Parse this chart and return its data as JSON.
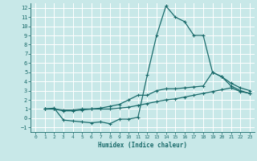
{
  "xlabel": "Humidex (Indice chaleur)",
  "bg_color": "#c8e8e8",
  "line_color": "#1a6b6b",
  "grid_color": "#ffffff",
  "xlim": [
    -0.5,
    23.5
  ],
  "ylim": [
    -1.5,
    12.5
  ],
  "xticks": [
    0,
    1,
    2,
    3,
    4,
    5,
    6,
    7,
    8,
    9,
    10,
    11,
    12,
    13,
    14,
    15,
    16,
    17,
    18,
    19,
    20,
    21,
    22,
    23
  ],
  "yticks": [
    -1,
    0,
    1,
    2,
    3,
    4,
    5,
    6,
    7,
    8,
    9,
    10,
    11,
    12
  ],
  "series1_x": [
    1,
    2,
    3,
    4,
    5,
    6,
    7,
    8,
    9,
    10,
    11,
    12,
    13,
    14,
    15,
    16,
    17,
    18,
    19,
    20,
    21,
    22,
    23
  ],
  "series1_y": [
    1.0,
    1.1,
    -0.2,
    -0.3,
    -0.4,
    -0.5,
    -0.4,
    -0.6,
    -0.1,
    -0.1,
    0.1,
    4.7,
    9.0,
    12.2,
    11.0,
    10.5,
    9.0,
    9.0,
    5.0,
    4.5,
    3.5,
    3.0,
    2.7
  ],
  "series2_x": [
    1,
    2,
    3,
    4,
    5,
    6,
    7,
    8,
    9,
    10,
    11,
    12,
    13,
    14,
    15,
    16,
    17,
    18,
    19,
    20,
    21,
    22,
    23
  ],
  "series2_y": [
    1.0,
    1.0,
    0.8,
    0.8,
    0.9,
    1.0,
    1.1,
    1.3,
    1.5,
    2.0,
    2.5,
    2.5,
    3.0,
    3.2,
    3.2,
    3.3,
    3.4,
    3.5,
    5.0,
    4.5,
    3.8,
    3.3,
    3.0
  ],
  "series3_x": [
    1,
    2,
    3,
    4,
    5,
    6,
    7,
    8,
    9,
    10,
    11,
    12,
    13,
    14,
    15,
    16,
    17,
    18,
    19,
    20,
    21,
    22,
    23
  ],
  "series3_y": [
    1.0,
    1.0,
    0.9,
    0.9,
    1.0,
    1.0,
    1.0,
    1.0,
    1.1,
    1.2,
    1.4,
    1.6,
    1.8,
    2.0,
    2.1,
    2.3,
    2.5,
    2.7,
    2.9,
    3.1,
    3.3,
    2.9,
    2.7
  ]
}
